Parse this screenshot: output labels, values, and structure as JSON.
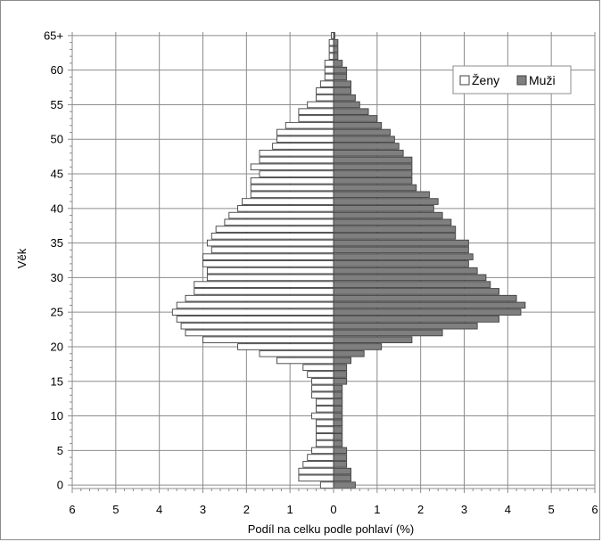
{
  "chart_data": {
    "type": "bar",
    "subtype": "population-pyramid",
    "orientation": "horizontal",
    "xlabel": "Podíl na celku podle pohlaví (%)",
    "ylabel": "Věk",
    "xlim": [
      -6,
      6
    ],
    "x_ticks": [
      "6",
      "5",
      "4",
      "3",
      "2",
      "1",
      "0",
      "1",
      "2",
      "3",
      "4",
      "5",
      "6"
    ],
    "y_ticks": [
      "0",
      "5",
      "10",
      "15",
      "20",
      "25",
      "30",
      "35",
      "40",
      "45",
      "50",
      "55",
      "60",
      "65+"
    ],
    "grid": true,
    "legend_position": "top-right",
    "categories": [
      "0",
      "1",
      "2",
      "3",
      "4",
      "5",
      "6",
      "7",
      "8",
      "9",
      "10",
      "11",
      "12",
      "13",
      "14",
      "15",
      "16",
      "17",
      "18",
      "19",
      "20",
      "21",
      "22",
      "23",
      "24",
      "25",
      "26",
      "27",
      "28",
      "29",
      "30",
      "31",
      "32",
      "33",
      "34",
      "35",
      "36",
      "37",
      "38",
      "39",
      "40",
      "41",
      "42",
      "43",
      "44",
      "45",
      "46",
      "47",
      "48",
      "49",
      "50",
      "51",
      "52",
      "53",
      "54",
      "55",
      "56",
      "57",
      "58",
      "59",
      "60",
      "61",
      "62",
      "63",
      "64",
      "65+"
    ],
    "series": [
      {
        "name": "Ženy",
        "side": "left",
        "color": "#ffffff",
        "values": [
          0.3,
          0.8,
          0.8,
          0.7,
          0.6,
          0.5,
          0.4,
          0.4,
          0.4,
          0.4,
          0.5,
          0.4,
          0.4,
          0.5,
          0.5,
          0.5,
          0.6,
          0.7,
          1.3,
          1.7,
          2.2,
          3.0,
          3.4,
          3.5,
          3.6,
          3.7,
          3.6,
          3.4,
          3.2,
          3.2,
          2.9,
          2.9,
          3.0,
          3.0,
          2.8,
          2.9,
          2.8,
          2.7,
          2.5,
          2.4,
          2.2,
          2.1,
          1.9,
          1.9,
          1.9,
          1.7,
          1.9,
          1.7,
          1.7,
          1.4,
          1.3,
          1.3,
          1.1,
          0.8,
          0.8,
          0.6,
          0.4,
          0.4,
          0.3,
          0.2,
          0.2,
          0.2,
          0.1,
          0.1,
          0.1,
          0.05
        ]
      },
      {
        "name": "Muži",
        "side": "right",
        "color": "#7f7f7f",
        "values": [
          0.5,
          0.4,
          0.4,
          0.3,
          0.3,
          0.3,
          0.2,
          0.2,
          0.2,
          0.2,
          0.2,
          0.2,
          0.2,
          0.2,
          0.2,
          0.3,
          0.3,
          0.3,
          0.4,
          0.7,
          1.1,
          1.8,
          2.5,
          3.3,
          3.8,
          4.3,
          4.4,
          4.2,
          3.8,
          3.6,
          3.5,
          3.3,
          3.1,
          3.2,
          3.1,
          3.1,
          2.8,
          2.8,
          2.7,
          2.5,
          2.3,
          2.4,
          2.2,
          1.9,
          1.8,
          1.8,
          1.8,
          1.8,
          1.6,
          1.5,
          1.4,
          1.3,
          1.1,
          1.0,
          0.8,
          0.6,
          0.5,
          0.4,
          0.4,
          0.3,
          0.3,
          0.2,
          0.1,
          0.1,
          0.1,
          0.03
        ]
      }
    ]
  }
}
